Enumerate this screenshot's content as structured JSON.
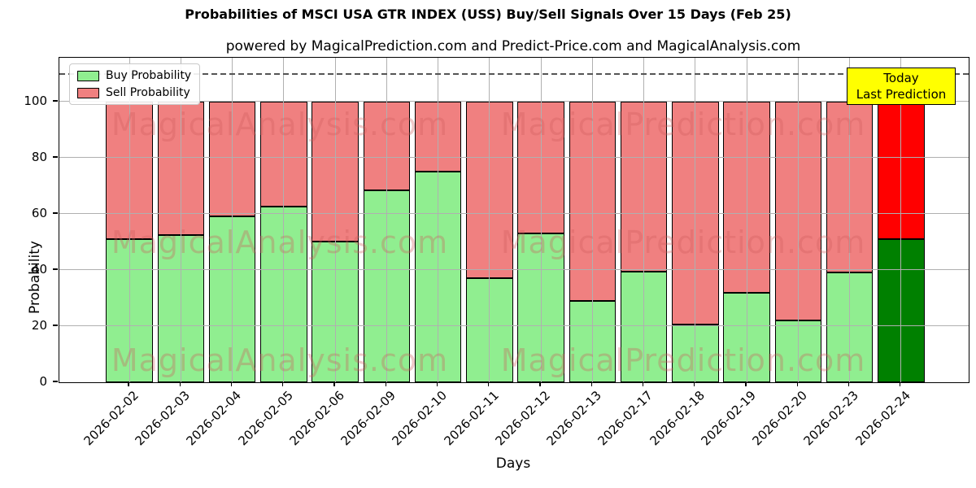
{
  "page": {
    "title": "Probabilities of MSCI USA GTR INDEX (USS) Buy/Sell Signals Over 15 Days (Feb 25)",
    "subtitle": "powered by MagicalPrediction.com and Predict-Price.com and MagicalAnalysis.com"
  },
  "legend": {
    "items": [
      {
        "label": "Buy Probability",
        "color": "#90ee90"
      },
      {
        "label": "Sell Probability",
        "color": "#f08080"
      }
    ]
  },
  "annotation": {
    "line1": "Today",
    "line2": "Last Prediction",
    "bg": "#ffff00"
  },
  "watermark": {
    "texts": [
      "MagicalAnalysis.com",
      "MagicalPrediction.com"
    ],
    "color_rgba": "rgba(205,92,92,0.33)"
  },
  "chart_data": {
    "type": "bar",
    "stacked": true,
    "title": "Probabilities of MSCI USA GTR INDEX (USS) Buy/Sell Signals Over 15 Days (Feb 25)",
    "subtitle": "powered by MagicalPrediction.com and Predict-Price.com and MagicalAnalysis.com",
    "xlabel": "Days",
    "ylabel": "Probability",
    "categories": [
      "2026-02-02",
      "2026-02-03",
      "2026-02-04",
      "2026-02-05",
      "2026-02-06",
      "2026-02-09",
      "2026-02-10",
      "2026-02-11",
      "2026-02-12",
      "2026-02-13",
      "2026-02-17",
      "2026-02-18",
      "2026-02-19",
      "2026-02-20",
      "2026-02-23",
      "2026-02-24"
    ],
    "series": [
      {
        "name": "Buy Probability",
        "color": "#90ee90",
        "today_color": "#008000",
        "values": [
          51,
          52.5,
          59,
          62.5,
          50,
          68.5,
          75,
          37,
          53,
          29,
          39.5,
          20.5,
          32,
          22,
          39,
          51
        ]
      },
      {
        "name": "Sell Probability",
        "color": "#f08080",
        "today_color": "#ff0000",
        "values": [
          49,
          47.5,
          41,
          37.5,
          50,
          31.5,
          25,
          63,
          47,
          71,
          60.5,
          79.5,
          68,
          78,
          61,
          49
        ]
      }
    ],
    "ylim": [
      0,
      115.6
    ],
    "yticks": [
      0,
      20,
      40,
      60,
      80,
      100
    ],
    "grid": true,
    "grid_above_bars": true,
    "dashed_line_y": 110,
    "legend_position": "upper-left",
    "today_annotation_index": 15
  }
}
